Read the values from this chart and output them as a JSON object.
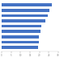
{
  "values": [
    26.6,
    25.3,
    24.5,
    23.3,
    21.1,
    20.5,
    19.9,
    19.5,
    19.3
  ],
  "bar_color": "#4472c4",
  "background_color": "#ffffff",
  "xlim": [
    0,
    30
  ],
  "n_bars": 9,
  "bar_height": 0.55,
  "figure_width": 1.0,
  "figure_height": 0.71,
  "dpi": 100
}
